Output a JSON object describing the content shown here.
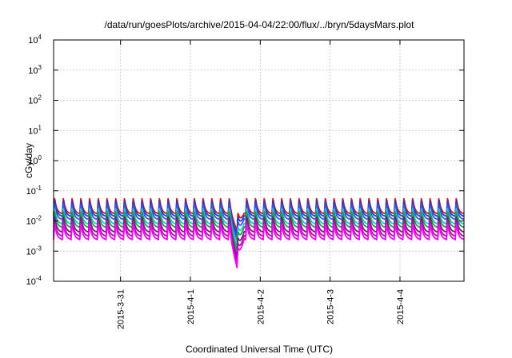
{
  "chart_data": {
    "type": "line",
    "title": "/data/run/goesPlots/archive/2015-04-04/22:00/flux/../bryn/5daysMars.plot",
    "xlabel": "Coordinated Universal Time (UTC)",
    "ylabel": "cGy/day",
    "yscale": "log",
    "ylim": [
      0.0001,
      10000
    ],
    "xlim": [
      "2015-03-30T01:00",
      "2015-04-04T22:00"
    ],
    "grid": true,
    "legend": "none",
    "yticks": [
      {
        "base": "10",
        "exp": "-4",
        "value": 0.0001
      },
      {
        "base": "10",
        "exp": "-3",
        "value": 0.001
      },
      {
        "base": "10",
        "exp": "-2",
        "value": 0.01
      },
      {
        "base": "10",
        "exp": "-1",
        "value": 0.1
      },
      {
        "base": "10",
        "exp": "0",
        "value": 1
      },
      {
        "base": "10",
        "exp": "1",
        "value": 10
      },
      {
        "base": "10",
        "exp": "2",
        "value": 100
      },
      {
        "base": "10",
        "exp": "3",
        "value": 1000
      },
      {
        "base": "10",
        "exp": "4",
        "value": 10000
      }
    ],
    "xticks": [
      {
        "label": "2015-3-31",
        "value": "2015-03-31T00:00"
      },
      {
        "label": "2015-4-1",
        "value": "2015-04-01T00:00"
      },
      {
        "label": "2015-4-2",
        "value": "2015-04-02T00:00"
      },
      {
        "label": "2015-4-3",
        "value": "2015-04-03T00:00"
      },
      {
        "label": "2015-4-4",
        "value": "2015-04-04T00:00"
      }
    ],
    "cycle_hours": 3,
    "dip": {
      "time": "2015-04-01T16:00",
      "min_value": 0.00065
    },
    "series": [
      {
        "color": "#e01010",
        "peak": 0.06,
        "trough": 0.017
      },
      {
        "color": "#1a3fe0",
        "peak": 0.05,
        "trough": 0.014
      },
      {
        "color": "#3355ee",
        "peak": 0.038,
        "trough": 0.011
      },
      {
        "color": "#20c8c8",
        "peak": 0.028,
        "trough": 0.0078
      },
      {
        "color": "#20a040",
        "peak": 0.022,
        "trough": 0.006
      },
      {
        "color": "#7a1a7a",
        "peak": 0.015,
        "trough": 0.0042
      },
      {
        "color": "#b010b0",
        "peak": 0.011,
        "trough": 0.0031
      },
      {
        "color": "#ff00ff",
        "peak": 0.0085,
        "trough": 0.0024
      }
    ]
  }
}
